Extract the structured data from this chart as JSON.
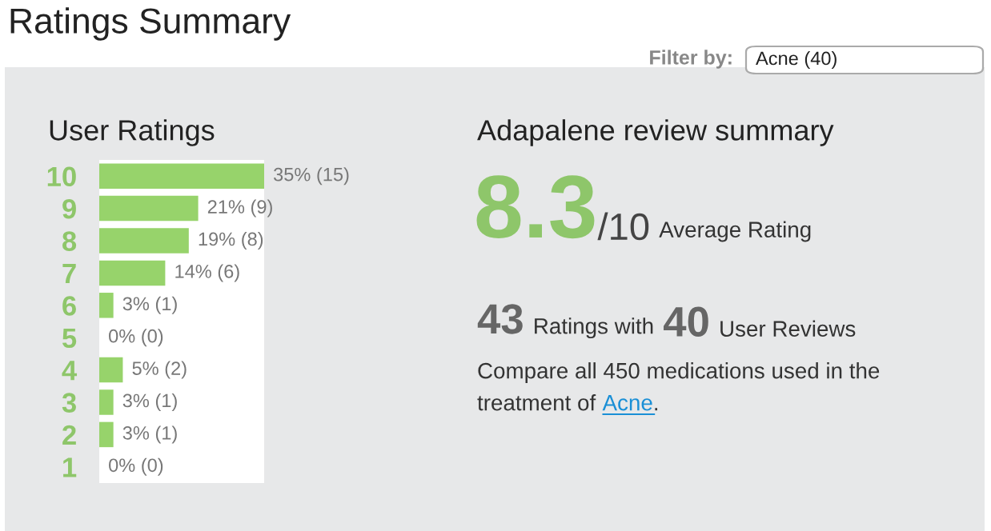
{
  "chart_data": [
    {
      "type": "other",
      "title": "Ratings Summary",
      "annotations": [
        "Filter by:",
        "Acne (40)"
      ]
    },
    {
      "type": "bar",
      "orientation": "horizontal",
      "title": "User Ratings",
      "color": "#97d36b",
      "categories": [
        "10",
        "9",
        "8",
        "7",
        "6",
        "5",
        "4",
        "3",
        "2",
        "1"
      ],
      "values": [
        35,
        21,
        19,
        14,
        3,
        0,
        5,
        3,
        3,
        0
      ],
      "value_labels": [
        "35% (15)",
        "21% (9)",
        "19% (8)",
        "14% (6)",
        "3% (1)",
        "0% (0)",
        "5% (2)",
        "3% (1)",
        "3% (1)",
        "0% (0)"
      ],
      "tick_labels": "y",
      "grid": false,
      "legend": false
    },
    {
      "type": "other",
      "title": "Adapalene review summary",
      "annotations": [
        "8.3",
        "/10",
        "Average Rating",
        "43",
        "Ratings with",
        "40",
        "User Reviews",
        "Compare all 450 medications used in the",
        "treatment of",
        "Acne",
        "."
      ]
    }
  ]
}
